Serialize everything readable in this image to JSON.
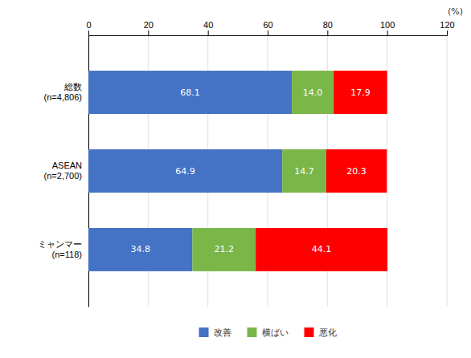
{
  "chart_data": {
    "type": "bar",
    "orientation": "horizontal",
    "stacked": true,
    "categories": [
      "総数\n(n=4,806)",
      "ASEAN\n(n=2,700)",
      "ミャンマー\n(n=118)"
    ],
    "series": [
      {
        "name": "改善",
        "color": "#4472C4",
        "values": [
          68.1,
          64.9,
          34.8
        ]
      },
      {
        "name": "横ばい",
        "color": "#7ab648",
        "values": [
          14.0,
          14.7,
          21.2
        ],
        "value_labels": [
          "14.0",
          "14.7",
          "21.2"
        ]
      },
      {
        "name": "悪化",
        "color": "#FF0000",
        "values": [
          17.9,
          20.3,
          44.1
        ]
      }
    ],
    "xlabel": "(%)",
    "xlim": [
      0,
      120
    ],
    "xticks": [
      0,
      20,
      40,
      60,
      80,
      100,
      120
    ],
    "grid": true,
    "legend": "bottom",
    "data_labels": true
  }
}
